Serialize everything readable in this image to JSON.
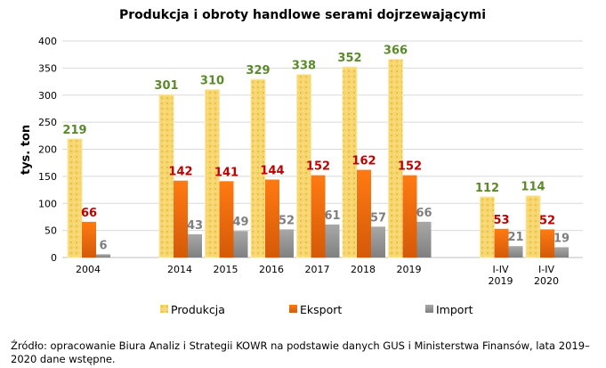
{
  "chart_data": {
    "type": "bar",
    "title": "Produkcja i obroty handlowe serami dojrzewającymi",
    "ylabel": "tys. ton",
    "xlabel": "",
    "ylim": [
      0,
      400
    ],
    "yticks": [
      0,
      50,
      100,
      150,
      200,
      250,
      300,
      350,
      400
    ],
    "grid": true,
    "legend_position": "bottom",
    "categories": [
      "2004",
      "",
      "2014",
      "2015",
      "2016",
      "2017",
      "2018",
      "2019",
      "",
      "I-IV\n2019",
      "I-IV\n2020"
    ],
    "series": [
      {
        "name": "Produkcja",
        "color": "#f5d36b",
        "label_color": "#5a8a2a",
        "values": [
          219,
          null,
          301,
          310,
          329,
          338,
          352,
          366,
          null,
          112,
          114
        ]
      },
      {
        "name": "Eksport",
        "color": "#f07010",
        "label_color": "#c00000",
        "values": [
          66,
          null,
          142,
          141,
          144,
          152,
          162,
          152,
          null,
          53,
          52
        ]
      },
      {
        "name": "Import",
        "color": "#999999",
        "label_color": "#7f7f7f",
        "values": [
          6,
          null,
          43,
          49,
          52,
          61,
          57,
          66,
          null,
          21,
          19
        ]
      }
    ]
  },
  "source": "Źródło: opracowanie Biura Analiz i Strategii KOWR na podstawie danych GUS i Ministerstwa Finansów, lata 2019–2020 dane wstępne."
}
